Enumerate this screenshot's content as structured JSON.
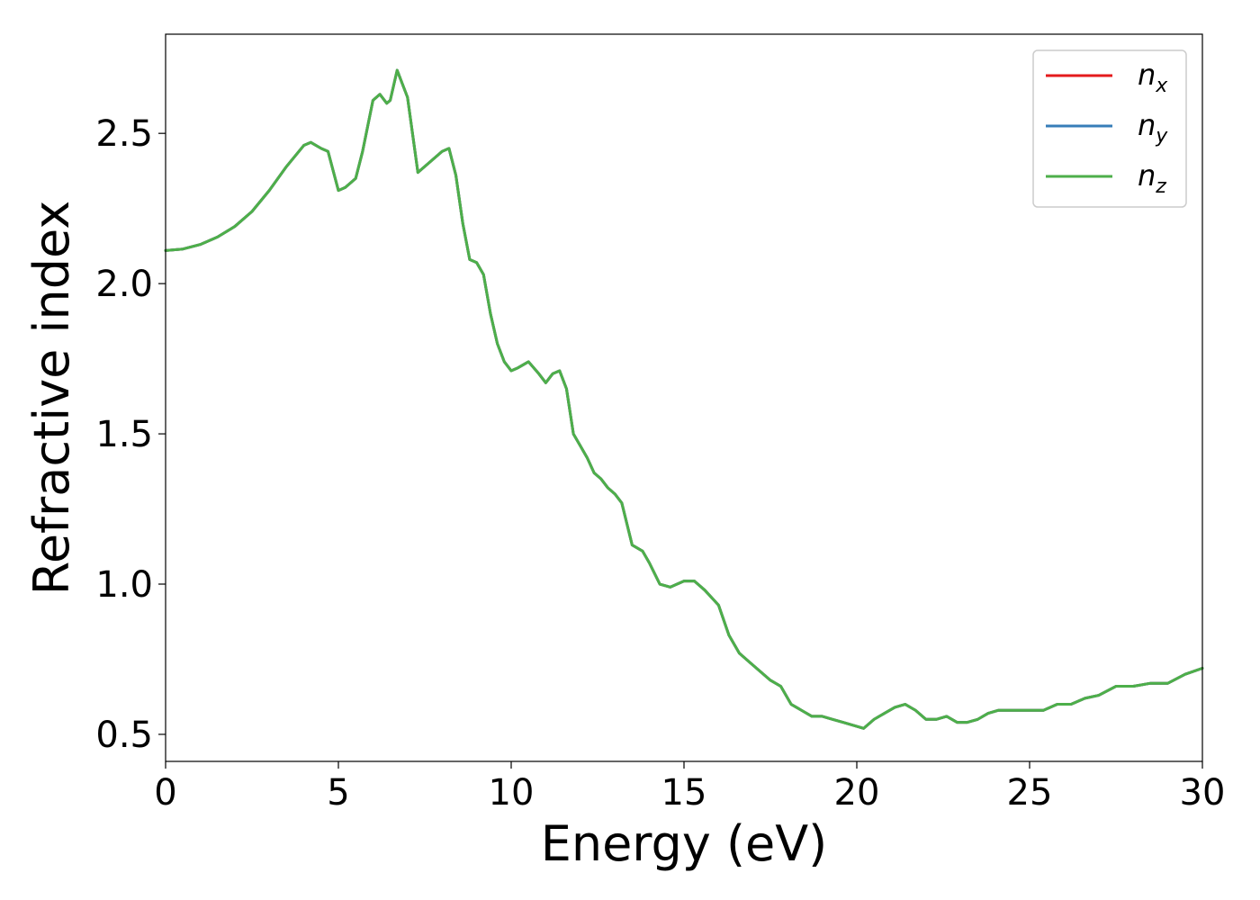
{
  "chart_data": {
    "type": "line",
    "xlabel": "Energy (eV)",
    "ylabel": "Refractive index",
    "xlim": [
      0,
      30
    ],
    "ylim": [
      0.41,
      2.83
    ],
    "x_ticks": [
      0,
      5,
      10,
      15,
      20,
      25,
      30
    ],
    "x_tick_labels": [
      "0",
      "5",
      "10",
      "15",
      "20",
      "25",
      "30"
    ],
    "y_ticks": [
      0.5,
      1.0,
      1.5,
      2.0,
      2.5
    ],
    "y_tick_labels": [
      "0.5",
      "1.0",
      "1.5",
      "2.0",
      "2.5"
    ],
    "grid": false,
    "legend_position": "top-right",
    "x": [
      0,
      0.5,
      1,
      1.5,
      2,
      2.5,
      3,
      3.5,
      4,
      4.2,
      4.5,
      4.7,
      5,
      5.2,
      5.5,
      5.7,
      6,
      6.2,
      6.4,
      6.5,
      6.7,
      7,
      7.3,
      7.6,
      8,
      8.2,
      8.4,
      8.6,
      8.8,
      9,
      9.2,
      9.4,
      9.6,
      9.8,
      10,
      10.2,
      10.5,
      10.8,
      11,
      11.2,
      11.4,
      11.6,
      11.8,
      12,
      12.2,
      12.4,
      12.6,
      12.8,
      13,
      13.2,
      13.5,
      13.8,
      14,
      14.3,
      14.6,
      14.8,
      15,
      15.3,
      15.6,
      16,
      16.3,
      16.6,
      16.9,
      17.2,
      17.5,
      17.8,
      18.1,
      18.4,
      18.7,
      19,
      19.3,
      19.6,
      19.9,
      20.2,
      20.5,
      20.8,
      21.1,
      21.4,
      21.7,
      22,
      22.3,
      22.6,
      22.9,
      23.2,
      23.5,
      23.8,
      24.1,
      24.5,
      25,
      25.4,
      25.8,
      26.2,
      26.6,
      27,
      27.5,
      28,
      28.5,
      29,
      29.5,
      30
    ],
    "series": [
      {
        "name": "n_x",
        "name_base": "n",
        "name_sub": "x",
        "color": "#e41a1c",
        "values": [
          2.11,
          2.115,
          2.13,
          2.155,
          2.19,
          2.24,
          2.31,
          2.39,
          2.46,
          2.47,
          2.45,
          2.44,
          2.31,
          2.32,
          2.35,
          2.44,
          2.61,
          2.63,
          2.6,
          2.61,
          2.71,
          2.62,
          2.37,
          2.4,
          2.44,
          2.45,
          2.36,
          2.2,
          2.08,
          2.07,
          2.03,
          1.9,
          1.8,
          1.74,
          1.71,
          1.72,
          1.74,
          1.7,
          1.67,
          1.7,
          1.71,
          1.65,
          1.5,
          1.46,
          1.42,
          1.37,
          1.35,
          1.32,
          1.3,
          1.27,
          1.13,
          1.11,
          1.07,
          1.0,
          0.99,
          1.0,
          1.01,
          1.01,
          0.98,
          0.93,
          0.83,
          0.77,
          0.74,
          0.71,
          0.68,
          0.66,
          0.6,
          0.58,
          0.56,
          0.56,
          0.55,
          0.54,
          0.53,
          0.52,
          0.55,
          0.57,
          0.59,
          0.6,
          0.58,
          0.55,
          0.55,
          0.56,
          0.54,
          0.54,
          0.55,
          0.57,
          0.58,
          0.58,
          0.58,
          0.58,
          0.6,
          0.6,
          0.62,
          0.63,
          0.66,
          0.66,
          0.67,
          0.67,
          0.7,
          0.72
        ]
      },
      {
        "name": "n_y",
        "name_base": "n",
        "name_sub": "y",
        "color": "#377eb8",
        "values": [
          2.11,
          2.115,
          2.13,
          2.155,
          2.19,
          2.24,
          2.31,
          2.39,
          2.46,
          2.47,
          2.45,
          2.44,
          2.31,
          2.32,
          2.35,
          2.44,
          2.61,
          2.63,
          2.6,
          2.61,
          2.71,
          2.62,
          2.37,
          2.4,
          2.44,
          2.45,
          2.36,
          2.2,
          2.08,
          2.07,
          2.03,
          1.9,
          1.8,
          1.74,
          1.71,
          1.72,
          1.74,
          1.7,
          1.67,
          1.7,
          1.71,
          1.65,
          1.5,
          1.46,
          1.42,
          1.37,
          1.35,
          1.32,
          1.3,
          1.27,
          1.13,
          1.11,
          1.07,
          1.0,
          0.99,
          1.0,
          1.01,
          1.01,
          0.98,
          0.93,
          0.83,
          0.77,
          0.74,
          0.71,
          0.68,
          0.66,
          0.6,
          0.58,
          0.56,
          0.56,
          0.55,
          0.54,
          0.53,
          0.52,
          0.55,
          0.57,
          0.59,
          0.6,
          0.58,
          0.55,
          0.55,
          0.56,
          0.54,
          0.54,
          0.55,
          0.57,
          0.58,
          0.58,
          0.58,
          0.58,
          0.6,
          0.6,
          0.62,
          0.63,
          0.66,
          0.66,
          0.67,
          0.67,
          0.7,
          0.72
        ]
      },
      {
        "name": "n_z",
        "name_base": "n",
        "name_sub": "z",
        "color": "#4daf4a",
        "values": [
          2.11,
          2.115,
          2.13,
          2.155,
          2.19,
          2.24,
          2.31,
          2.39,
          2.46,
          2.47,
          2.45,
          2.44,
          2.31,
          2.32,
          2.35,
          2.44,
          2.61,
          2.63,
          2.6,
          2.61,
          2.71,
          2.62,
          2.37,
          2.4,
          2.44,
          2.45,
          2.36,
          2.2,
          2.08,
          2.07,
          2.03,
          1.9,
          1.8,
          1.74,
          1.71,
          1.72,
          1.74,
          1.7,
          1.67,
          1.7,
          1.71,
          1.65,
          1.5,
          1.46,
          1.42,
          1.37,
          1.35,
          1.32,
          1.3,
          1.27,
          1.13,
          1.11,
          1.07,
          1.0,
          0.99,
          1.0,
          1.01,
          1.01,
          0.98,
          0.93,
          0.83,
          0.77,
          0.74,
          0.71,
          0.68,
          0.66,
          0.6,
          0.58,
          0.56,
          0.56,
          0.55,
          0.54,
          0.53,
          0.52,
          0.55,
          0.57,
          0.59,
          0.6,
          0.58,
          0.55,
          0.55,
          0.56,
          0.54,
          0.54,
          0.55,
          0.57,
          0.58,
          0.58,
          0.58,
          0.58,
          0.6,
          0.6,
          0.62,
          0.63,
          0.66,
          0.66,
          0.67,
          0.67,
          0.7,
          0.72
        ]
      }
    ]
  }
}
